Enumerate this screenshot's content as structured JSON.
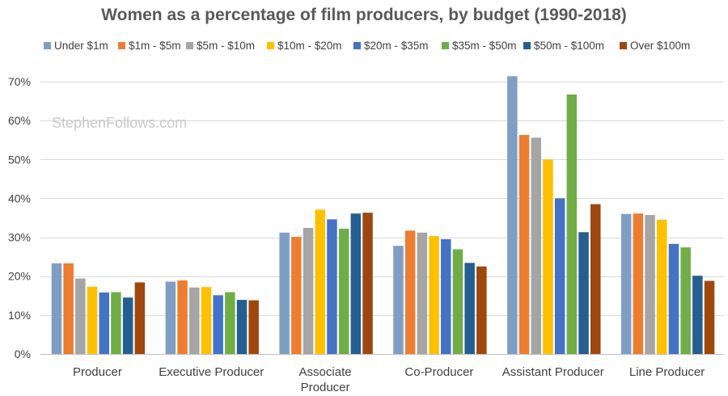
{
  "chart_data": {
    "type": "bar",
    "title": "Women as a percentage of film producers, by budget (1990-2018)",
    "watermark": "StephenFollows.com",
    "categories": [
      "Producer",
      "Executive Producer",
      "Associate Producer",
      "Co-Producer",
      "Assistant Producer",
      "Line Producer"
    ],
    "category_lines": [
      [
        "Producer"
      ],
      [
        "Executive Producer"
      ],
      [
        "Associate",
        "Producer"
      ],
      [
        "Co-Producer"
      ],
      [
        "Assistant Producer"
      ],
      [
        "Line Producer"
      ]
    ],
    "series": [
      {
        "name": "Under $1m",
        "color": "#7f9ec4",
        "values": [
          23.3,
          18.6,
          31.2,
          27.8,
          71.4,
          36.0
        ]
      },
      {
        "name": "$1m - $5m",
        "color": "#ed7d31",
        "values": [
          23.3,
          18.9,
          30.1,
          31.7,
          56.3,
          36.1
        ]
      },
      {
        "name": "$5m - $10m",
        "color": "#a5a5a5",
        "values": [
          19.4,
          17.1,
          32.4,
          31.2,
          55.6,
          35.7
        ]
      },
      {
        "name": "$10m - $20m",
        "color": "#ffc000",
        "values": [
          17.3,
          17.2,
          37.1,
          30.3,
          50.0,
          34.5
        ]
      },
      {
        "name": "$20m - $35m",
        "color": "#4472c4",
        "values": [
          15.8,
          15.1,
          34.6,
          29.5,
          40.0,
          28.3
        ]
      },
      {
        "name": "$35m - $50m",
        "color": "#70ad47",
        "values": [
          15.9,
          15.9,
          32.2,
          26.9,
          66.7,
          27.4
        ]
      },
      {
        "name": "$50m - $100m",
        "color": "#255e91",
        "values": [
          14.5,
          13.9,
          36.1,
          23.4,
          31.3,
          20.1
        ]
      },
      {
        "name": "Over $100m",
        "color": "#9e480e",
        "values": [
          18.4,
          13.8,
          36.3,
          22.5,
          38.5,
          18.8
        ]
      }
    ],
    "ylim": [
      0,
      70
    ],
    "yticks": [
      0,
      10,
      20,
      30,
      40,
      50,
      60,
      70
    ],
    "ytick_labels": [
      "0%",
      "10%",
      "20%",
      "30%",
      "40%",
      "50%",
      "60%",
      "70%"
    ],
    "xlabel": "",
    "ylabel": "",
    "grid": true,
    "legend_position": "top"
  }
}
